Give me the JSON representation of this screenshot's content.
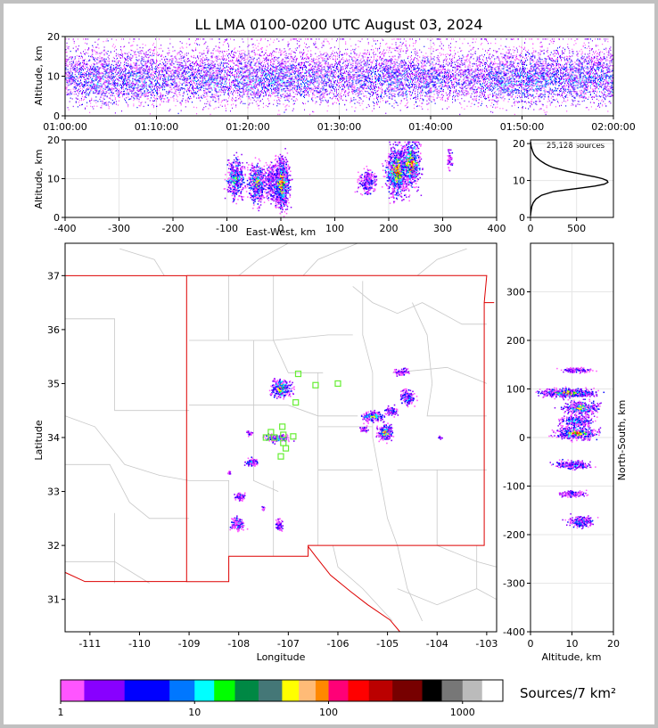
{
  "title": "LL LMA 0100-0200 UTC August 03, 2024",
  "chart_data": [
    {
      "type": "heatmap",
      "name": "time-height",
      "xticks": [
        "01:00:00",
        "01:10:00",
        "01:20:00",
        "01:30:00",
        "01:40:00",
        "01:50:00",
        "02:00:00"
      ],
      "ylabel": "Altitude, km",
      "ylim": [
        0,
        20
      ],
      "yticks": [
        0,
        10,
        20
      ],
      "activity": [
        8,
        10,
        12,
        12,
        11,
        13,
        12,
        11,
        9,
        6,
        8,
        10,
        13,
        11,
        9,
        10,
        12,
        13,
        14,
        12,
        11,
        10,
        9,
        8,
        7,
        9,
        10,
        11,
        12,
        13,
        11,
        10,
        9,
        7,
        6,
        7,
        9,
        11,
        13,
        14,
        15,
        14,
        12,
        11,
        13,
        14,
        13,
        12
      ]
    },
    {
      "type": "heatmap",
      "name": "east-west-altitude",
      "xlabel": "East-West, km",
      "xlim": [
        -400,
        400
      ],
      "xticks": [
        -400,
        -300,
        -200,
        -100,
        0,
        100,
        200,
        300,
        400
      ],
      "ylabel": "Altitude, km",
      "ylim": [
        0,
        20
      ],
      "yticks": [
        0,
        10,
        20
      ],
      "clusters": [
        {
          "x": -85,
          "z": 10,
          "w": 14,
          "h": 4,
          "n": 150
        },
        {
          "x": -45,
          "z": 9,
          "w": 14,
          "h": 4,
          "n": 170
        },
        {
          "x": -20,
          "z": 9.5,
          "w": 8,
          "h": 3.5,
          "n": 80
        },
        {
          "x": 0,
          "z": 9,
          "w": 12,
          "h": 5,
          "n": 340
        },
        {
          "x": 160,
          "z": 9.5,
          "w": 14,
          "h": 2.5,
          "n": 80
        },
        {
          "x": 215,
          "z": 12,
          "w": 18,
          "h": 5,
          "n": 300
        },
        {
          "x": 240,
          "z": 14,
          "w": 16,
          "h": 5,
          "n": 200
        },
        {
          "x": 312,
          "z": 15,
          "w": 4,
          "h": 2.5,
          "n": 20
        }
      ]
    },
    {
      "type": "line",
      "name": "altitude-histogram",
      "annotation": "25,128 sources",
      "xlim": [
        0,
        900
      ],
      "xticks": [
        0,
        500
      ],
      "ylim": [
        0,
        21
      ],
      "yticks": [
        0,
        10,
        20
      ],
      "x": [
        0,
        2,
        8,
        15,
        30,
        60,
        120,
        250,
        400,
        550,
        700,
        800,
        840,
        830,
        780,
        700,
        600,
        500,
        400,
        320,
        250,
        200,
        160,
        130,
        100,
        75,
        55,
        40,
        30,
        22,
        16,
        10,
        6,
        3,
        1
      ],
      "y": [
        0.5,
        1,
        2,
        3,
        4,
        5,
        6,
        7,
        7.5,
        8,
        8.5,
        9,
        9.5,
        10,
        10.5,
        11,
        11.5,
        12,
        12.5,
        13,
        13.5,
        14,
        14.5,
        15,
        15.5,
        16,
        16.5,
        17,
        17.5,
        18,
        18.5,
        19,
        19.5,
        20,
        20.5
      ]
    },
    {
      "type": "heatmap",
      "name": "plan-view-map",
      "xlabel": "Longitude",
      "xlim": [
        -111.5,
        -102.8
      ],
      "xticks": [
        -111,
        -110,
        -109,
        -108,
        -107,
        -106,
        -105,
        -104,
        -103
      ],
      "ylabel": "Latitude",
      "ylim": [
        30.4,
        37.6
      ],
      "yticks": [
        31,
        32,
        33,
        34,
        35,
        36,
        37
      ],
      "clusters": [
        {
          "lon": -107.15,
          "lat": 34.92,
          "w": 0.2,
          "h": 0.16,
          "n": 130
        },
        {
          "lon": -107.2,
          "lat": 34.0,
          "w": 0.25,
          "h": 0.07,
          "n": 70
        },
        {
          "lon": -107.75,
          "lat": 33.55,
          "w": 0.12,
          "h": 0.07,
          "n": 45
        },
        {
          "lon": -107.8,
          "lat": 34.08,
          "w": 0.06,
          "h": 0.06,
          "n": 12
        },
        {
          "lon": -108.0,
          "lat": 32.92,
          "w": 0.1,
          "h": 0.07,
          "n": 40
        },
        {
          "lon": -107.2,
          "lat": 32.4,
          "w": 0.06,
          "h": 0.1,
          "n": 35
        },
        {
          "lon": -108.05,
          "lat": 32.4,
          "w": 0.14,
          "h": 0.12,
          "n": 70
        },
        {
          "lon": -107.5,
          "lat": 32.7,
          "w": 0.04,
          "h": 0.04,
          "n": 8
        },
        {
          "lon": -108.2,
          "lat": 33.35,
          "w": 0.03,
          "h": 0.03,
          "n": 5
        },
        {
          "lon": -104.75,
          "lat": 35.22,
          "w": 0.14,
          "h": 0.06,
          "n": 35
        },
        {
          "lon": -104.6,
          "lat": 34.75,
          "w": 0.14,
          "h": 0.12,
          "n": 80
        },
        {
          "lon": -104.95,
          "lat": 34.5,
          "w": 0.12,
          "h": 0.08,
          "n": 50
        },
        {
          "lon": -105.3,
          "lat": 34.4,
          "w": 0.2,
          "h": 0.1,
          "n": 90
        },
        {
          "lon": -105.5,
          "lat": 34.15,
          "w": 0.1,
          "h": 0.05,
          "n": 20
        },
        {
          "lon": -105.05,
          "lat": 34.1,
          "w": 0.14,
          "h": 0.14,
          "n": 120
        },
        {
          "lon": -103.95,
          "lat": 34.0,
          "w": 0.04,
          "h": 0.03,
          "n": 6
        }
      ],
      "stations": [
        {
          "lon": -106.8,
          "lat": 35.18
        },
        {
          "lon": -106.45,
          "lat": 34.97
        },
        {
          "lon": -106.0,
          "lat": 35.0
        },
        {
          "lon": -106.85,
          "lat": 34.65
        },
        {
          "lon": -107.35,
          "lat": 34.1
        },
        {
          "lon": -107.45,
          "lat": 34.0
        },
        {
          "lon": -107.28,
          "lat": 34.0
        },
        {
          "lon": -107.12,
          "lat": 34.2
        },
        {
          "lon": -107.1,
          "lat": 34.05
        },
        {
          "lon": -107.1,
          "lat": 33.9
        },
        {
          "lon": -107.05,
          "lat": 33.8
        },
        {
          "lon": -107.15,
          "lat": 33.65
        },
        {
          "lon": -106.9,
          "lat": 34.02
        }
      ]
    },
    {
      "type": "heatmap",
      "name": "altitude-north-south",
      "xlabel": "Altitude, km",
      "xlim": [
        0,
        20
      ],
      "xticks": [
        0,
        10,
        20
      ],
      "ylabel": "North-South, km",
      "ylim": [
        -400,
        400
      ],
      "yticks": [
        -400,
        -300,
        -200,
        -100,
        0,
        100,
        200,
        300
      ],
      "clusters": [
        {
          "z": 11,
          "ns": 140,
          "w": 3,
          "h": 5,
          "n": 45
        },
        {
          "z": 9,
          "ns": 93,
          "w": 5,
          "h": 8,
          "n": 230
        },
        {
          "z": 12,
          "ns": 62,
          "w": 3.5,
          "h": 14,
          "n": 120
        },
        {
          "z": 11,
          "ns": 35,
          "w": 3,
          "h": 12,
          "n": 90
        },
        {
          "z": 11,
          "ns": 10,
          "w": 4,
          "h": 12,
          "n": 140
        },
        {
          "z": 10,
          "ns": -55,
          "w": 3.5,
          "h": 8,
          "n": 80
        },
        {
          "z": 10,
          "ns": -115,
          "w": 2.5,
          "h": 6,
          "n": 50
        },
        {
          "z": 12,
          "ns": -172,
          "w": 2.5,
          "h": 10,
          "n": 80
        }
      ]
    },
    {
      "type": "colorbar",
      "label": "Sources/7 km²",
      "ticks": [
        "1",
        "10",
        "100",
        "1000"
      ],
      "colors": [
        "#ff55ff",
        "#8800ff",
        "#8800ff",
        "#0000ff",
        "#0000ff",
        "#0077ff",
        "#00ffff",
        "#00ff00",
        "#008844",
        "#008844",
        "#447777",
        "#ffff00",
        "#ffbb77",
        "#ff8800",
        "#ff0077",
        "#ff0000",
        "#bb0000",
        "#770000",
        "#000000",
        "#777777",
        "#bbbbbb",
        "#ffffff"
      ]
    }
  ]
}
